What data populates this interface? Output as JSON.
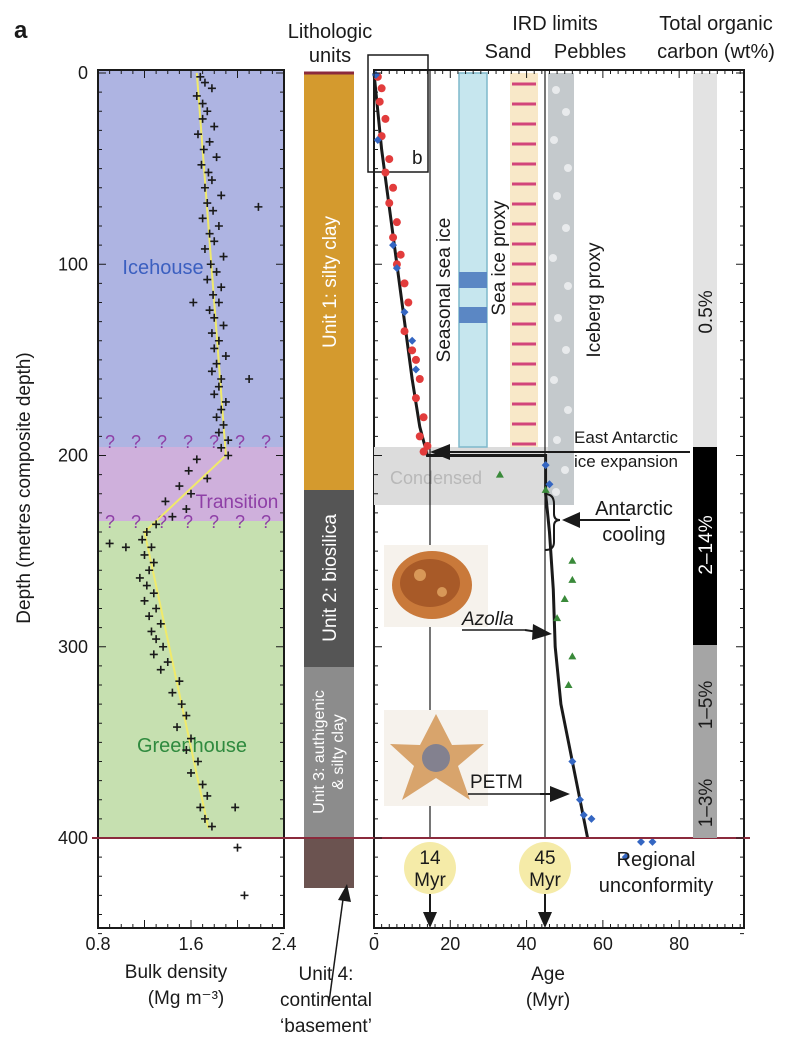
{
  "panel_label": "a",
  "headers": {
    "lithologic": [
      "Lithologic",
      "units"
    ],
    "ird_limits": "IRD limits",
    "sand": "Sand",
    "pebbles": "Pebbles",
    "toc": [
      "Total organic",
      "carbon (wt%)"
    ]
  },
  "y_axis": {
    "label": "Depth (metres composite depth)",
    "ticks": [
      "0",
      "100",
      "200",
      "300",
      "400"
    ],
    "range": [
      0,
      450
    ]
  },
  "density_axis": {
    "label_line1": "Bulk density",
    "label_line2": "(Mg m⁻³)",
    "ticks": [
      "0.8",
      "1.6",
      "2.4"
    ],
    "range": [
      0.8,
      2.4
    ]
  },
  "age_axis": {
    "label_line1": "Age",
    "label_line2": "(Myr)",
    "ticks": [
      "0",
      "20",
      "40",
      "60",
      "80"
    ],
    "range": [
      0,
      97
    ]
  },
  "zones": {
    "icehouse": "Icehouse",
    "transition": "Transition",
    "greenhouse": "Greenhouse",
    "question": "?"
  },
  "units": {
    "unit1": "Unit 1: silty clay",
    "unit2": "Unit 2: biosilica",
    "unit3_line1": "Unit 3: authigenic",
    "unit3_line2": "& silty clay",
    "unit4": [
      "Unit 4:",
      "continental",
      "‘basement’"
    ]
  },
  "annotations": {
    "inset_b": "b",
    "seasonal_sea_ice": "Seasonal sea ice",
    "sea_ice_proxy": "Sea ice proxy",
    "iceberg_proxy": "Iceberg proxy",
    "condensed": "Condensed",
    "east_antarctic": [
      "East Antarctic",
      "ice expansion"
    ],
    "antarctic_cooling": [
      "Antarctic",
      "cooling"
    ],
    "azolla": "Azolla",
    "petm": "PETM",
    "regional_unconformity": [
      "Regional",
      "unconformity"
    ],
    "myr14": [
      "14",
      "Myr"
    ],
    "myr45": [
      "45",
      "Myr"
    ]
  },
  "toc_labels": [
    "0.5%",
    "2–14%",
    "1–5%",
    "1–3%"
  ],
  "colors": {
    "icehouse": "#aeb4e2",
    "transition": "#cfb0dc",
    "greenhouse": "#c6e0b0",
    "unit1": "#d49a2e",
    "unit2": "#555555",
    "unit3": "#8c8c8c",
    "unit4": "#6b5350",
    "unconformity": "#8b2a3c",
    "sea_ice_band": "#c6e6ee",
    "sand_band": "#f8e8c8",
    "pebble_band": "#c4c9cc",
    "red_points": "#e23c3c",
    "blue_points": "#3466c2",
    "green_points": "#3a8a3a",
    "myr_circle": "#f5eba8",
    "density_fit": "#f0ea6a"
  },
  "chart_data": [
    {
      "type": "scatter",
      "title": "",
      "xlabel": "Bulk density (Mg m⁻³)",
      "ylabel": "Depth (metres composite depth)",
      "xlim": [
        0.8,
        2.4
      ],
      "ylim": [
        450,
        0
      ],
      "series": [
        {
          "values_xy": [
            [
              1.68,
              2
            ],
            [
              1.72,
              5
            ],
            [
              1.78,
              8
            ],
            [
              1.65,
              12
            ],
            [
              1.7,
              16
            ],
            [
              1.74,
              20
            ],
            [
              1.7,
              24
            ],
            [
              1.8,
              28
            ],
            [
              1.66,
              32
            ],
            [
              1.76,
              36
            ],
            [
              1.71,
              40
            ],
            [
              1.82,
              44
            ],
            [
              1.69,
              48
            ],
            [
              1.75,
              52
            ],
            [
              1.78,
              56
            ],
            [
              1.72,
              60
            ],
            [
              1.86,
              64
            ],
            [
              1.74,
              68
            ],
            [
              1.79,
              72
            ],
            [
              1.7,
              76
            ],
            [
              1.84,
              80
            ],
            [
              1.76,
              84
            ],
            [
              1.8,
              88
            ],
            [
              1.72,
              92
            ],
            [
              1.88,
              96
            ],
            [
              1.77,
              100
            ],
            [
              1.82,
              104
            ],
            [
              1.74,
              108
            ],
            [
              1.86,
              112
            ],
            [
              1.79,
              116
            ],
            [
              1.84,
              120
            ],
            [
              1.76,
              124
            ],
            [
              1.8,
              128
            ],
            [
              1.88,
              132
            ],
            [
              1.78,
              136
            ],
            [
              1.84,
              140
            ],
            [
              1.8,
              144
            ],
            [
              1.9,
              148
            ],
            [
              1.82,
              152
            ],
            [
              1.78,
              156
            ],
            [
              1.86,
              160
            ],
            [
              1.84,
              164
            ],
            [
              1.8,
              168
            ],
            [
              1.9,
              172
            ],
            [
              1.86,
              176
            ],
            [
              1.82,
              180
            ],
            [
              1.88,
              184
            ],
            [
              1.84,
              188
            ],
            [
              1.92,
              192
            ],
            [
              1.86,
              196
            ],
            [
              1.92,
              200
            ],
            [
              2.18,
              70
            ],
            [
              1.62,
              120
            ],
            [
              2.1,
              160
            ],
            [
              1.65,
              202
            ],
            [
              1.58,
              208
            ],
            [
              1.74,
              212
            ],
            [
              1.5,
              216
            ],
            [
              1.6,
              220
            ],
            [
              1.38,
              224
            ],
            [
              1.56,
              228
            ],
            [
              1.44,
              232
            ],
            [
              1.3,
              236
            ],
            [
              1.22,
              240
            ],
            [
              1.18,
              244
            ],
            [
              1.26,
              248
            ],
            [
              1.2,
              252
            ],
            [
              1.28,
              256
            ],
            [
              1.24,
              260
            ],
            [
              1.16,
              264
            ],
            [
              1.22,
              268
            ],
            [
              1.28,
              272
            ],
            [
              1.2,
              276
            ],
            [
              1.3,
              280
            ],
            [
              1.24,
              284
            ],
            [
              1.34,
              288
            ],
            [
              1.26,
              292
            ],
            [
              1.3,
              296
            ],
            [
              1.36,
              300
            ],
            [
              1.28,
              304
            ],
            [
              1.4,
              308
            ],
            [
              1.34,
              312
            ],
            [
              1.5,
              318
            ],
            [
              1.44,
              324
            ],
            [
              1.52,
              330
            ],
            [
              1.56,
              336
            ],
            [
              1.48,
              342
            ],
            [
              1.6,
              348
            ],
            [
              1.56,
              354
            ],
            [
              1.66,
              360
            ],
            [
              1.6,
              366
            ],
            [
              1.7,
              372
            ],
            [
              1.74,
              378
            ],
            [
              1.68,
              384
            ],
            [
              1.72,
              390
            ],
            [
              1.78,
              394
            ],
            [
              1.98,
              384
            ],
            [
              2.0,
              405
            ],
            [
              2.06,
              430
            ],
            [
              0.9,
              246
            ],
            [
              1.04,
              248
            ]
          ]
        },
        {
          "name": "",
          "values_xy": [
            [
              1.65,
              0
            ],
            [
              1.9,
              200
            ],
            [
              1.2,
              240
            ],
            [
              1.75,
              395
            ]
          ]
        }
      ]
    },
    {
      "type": "line",
      "title": "",
      "xlabel": "Age (Myr)",
      "ylabel": "Depth (metres composite depth)",
      "xlim": [
        0,
        97
      ],
      "ylim": [
        450,
        0
      ],
      "series": [
        {
          "name": "",
          "values_xy": [
            [
              0,
              0
            ],
            [
              1,
              20
            ],
            [
              2,
              40
            ],
            [
              4,
              70
            ],
            [
              6,
              100
            ],
            [
              8,
              130
            ],
            [
              10,
              160
            ],
            [
              12,
              185
            ],
            [
              14,
              200
            ],
            [
              14,
              200
            ],
            [
              45,
              200
            ],
            [
              45,
              220
            ],
            [
              46,
              240
            ],
            [
              47,
              270
            ],
            [
              47.5,
              300
            ],
            [
              49,
              330
            ],
            [
              51,
              350
            ],
            [
              53,
              370
            ],
            [
              55,
              390
            ],
            [
              56,
              400
            ]
          ]
        },
        {
          "name": "",
          "values_xy": [
            [
              1,
              2
            ],
            [
              2,
              8
            ],
            [
              1.5,
              15
            ],
            [
              3,
              24
            ],
            [
              2,
              33
            ],
            [
              4,
              45
            ],
            [
              3,
              52
            ],
            [
              5,
              60
            ],
            [
              4,
              68
            ],
            [
              6,
              78
            ],
            [
              5,
              86
            ],
            [
              7,
              95
            ],
            [
              6,
              100
            ],
            [
              8,
              110
            ],
            [
              9,
              120
            ],
            [
              8,
              135
            ],
            [
              10,
              145
            ],
            [
              11,
              150
            ],
            [
              12,
              160
            ],
            [
              11,
              170
            ],
            [
              13,
              180
            ],
            [
              12,
              190
            ],
            [
              14,
              195
            ],
            [
              13,
              198
            ]
          ]
        },
        {
          "name": "",
          "values_xy": [
            [
              0.5,
              1
            ],
            [
              1,
              35
            ],
            [
              5,
              90
            ],
            [
              6,
              102
            ],
            [
              8,
              125
            ],
            [
              10,
              140
            ],
            [
              11,
              155
            ],
            [
              45,
              205
            ],
            [
              46,
              215
            ],
            [
              52,
              360
            ],
            [
              54,
              380
            ],
            [
              55,
              388
            ],
            [
              57,
              390
            ],
            [
              70,
              402
            ],
            [
              73,
              402
            ],
            [
              66,
              410
            ]
          ]
        },
        {
          "name": "",
          "values_xy": [
            [
              33,
              210
            ],
            [
              45,
              218
            ],
            [
              52,
              255
            ],
            [
              52,
              265
            ],
            [
              50,
              275
            ],
            [
              48,
              285
            ],
            [
              52,
              305
            ],
            [
              51,
              320
            ]
          ]
        }
      ]
    }
  ]
}
